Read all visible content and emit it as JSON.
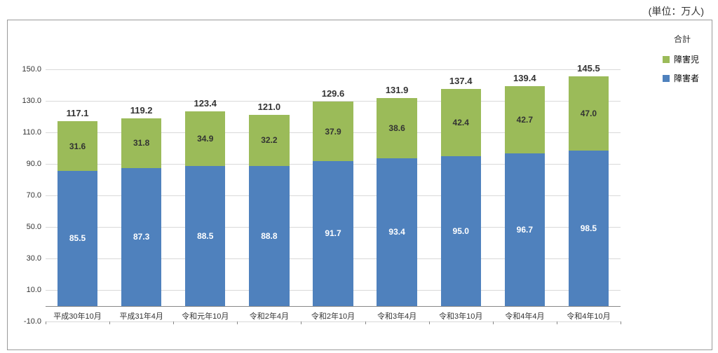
{
  "unit_label": "(単位：万人)",
  "chart": {
    "type": "stacked-bar",
    "y_axis": {
      "min": -10.0,
      "max": 150.0,
      "step": 20.0,
      "ticks": [
        -10.0,
        10.0,
        30.0,
        50.0,
        70.0,
        90.0,
        110.0,
        130.0,
        150.0
      ],
      "gridline_color": "#d9d9d9",
      "baseline_color": "#888888"
    },
    "categories": [
      "平成30年10月",
      "平成31年4月",
      "令和元年10月",
      "令和2年4月",
      "令和2年10月",
      "令和3年4月",
      "令和3年10月",
      "令和4年4月",
      "令和4年10月"
    ],
    "series": [
      {
        "name": "障害者",
        "color": "#4f81bd",
        "label_color": "#ffffff",
        "values": [
          85.5,
          87.3,
          88.5,
          88.8,
          91.7,
          93.4,
          95.0,
          96.7,
          98.5
        ]
      },
      {
        "name": "障害児",
        "color": "#9bbb59",
        "label_color": "#333333",
        "values": [
          31.6,
          31.8,
          34.9,
          32.2,
          37.9,
          38.6,
          42.4,
          42.7,
          47.0
        ]
      }
    ],
    "totals": [
      117.1,
      119.2,
      123.4,
      121.0,
      129.6,
      131.9,
      137.4,
      139.4,
      145.5
    ],
    "legend": {
      "total_label": "合計",
      "items": [
        {
          "label": "障害児",
          "color": "#9bbb59"
        },
        {
          "label": "障害者",
          "color": "#4f81bd"
        }
      ]
    },
    "bar_width_ratio": 0.63,
    "plot_background": "#ffffff",
    "frame_border": "#999999",
    "font_size_axis": 11,
    "font_size_value": 12,
    "font_size_total": 13
  }
}
